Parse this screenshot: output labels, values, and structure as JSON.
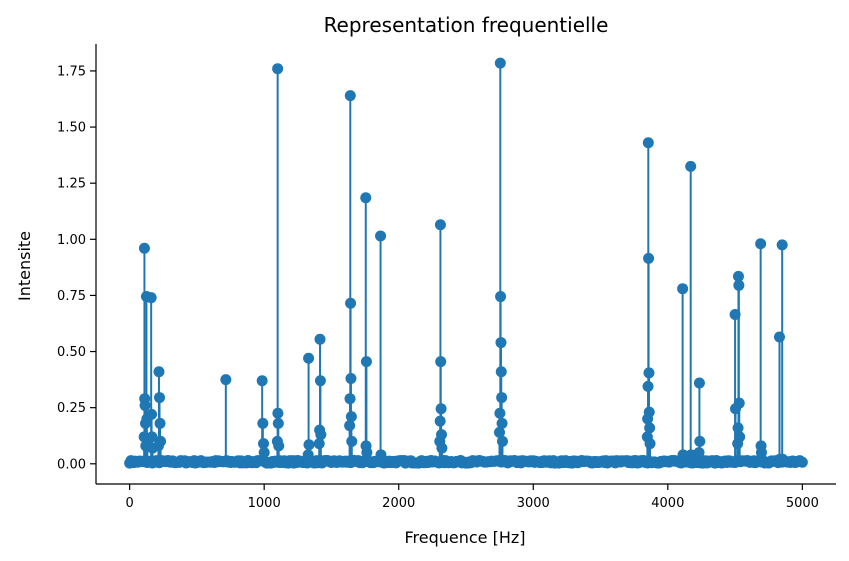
{
  "chart_data": {
    "type": "stem",
    "title": "Representation frequentielle",
    "xlabel": "Frequence [Hz]",
    "ylabel": "Intensite",
    "xlim": [
      -250,
      5250
    ],
    "ylim": [
      -0.09,
      1.87
    ],
    "xticks": [
      0,
      1000,
      2000,
      3000,
      4000,
      5000
    ],
    "xtick_labels": [
      "0",
      "1000",
      "2000",
      "3000",
      "4000",
      "5000"
    ],
    "yticks": [
      0.0,
      0.25,
      0.5,
      0.75,
      1.0,
      1.25,
      1.5,
      1.75
    ],
    "ytick_labels": [
      "0.00",
      "0.25",
      "0.50",
      "0.75",
      "1.00",
      "1.25",
      "1.50",
      "1.75"
    ],
    "grid": false,
    "stem_color": "#1f77b4",
    "baseline_color": "#d62728",
    "baseline_value": 0,
    "x_range": [
      0,
      5000
    ],
    "points": [
      [
        110,
        0.96
      ],
      [
        112,
        0.29
      ],
      [
        115,
        0.26
      ],
      [
        118,
        0.18
      ],
      [
        108,
        0.12
      ],
      [
        120,
        0.08
      ],
      [
        125,
        0.745
      ],
      [
        128,
        0.2
      ],
      [
        132,
        0.11
      ],
      [
        160,
        0.74
      ],
      [
        163,
        0.22
      ],
      [
        166,
        0.12
      ],
      [
        170,
        0.07
      ],
      [
        218,
        0.41
      ],
      [
        222,
        0.295
      ],
      [
        226,
        0.18
      ],
      [
        230,
        0.1
      ],
      [
        214,
        0.08
      ],
      [
        715,
        0.375
      ],
      [
        985,
        0.37
      ],
      [
        990,
        0.18
      ],
      [
        995,
        0.09
      ],
      [
        1000,
        0.05
      ],
      [
        1100,
        1.76
      ],
      [
        1102,
        0.225
      ],
      [
        1105,
        0.18
      ],
      [
        1098,
        0.1
      ],
      [
        1108,
        0.08
      ],
      [
        1330,
        0.47
      ],
      [
        1333,
        0.085
      ],
      [
        1327,
        0.04
      ],
      [
        1415,
        0.555
      ],
      [
        1418,
        0.37
      ],
      [
        1412,
        0.15
      ],
      [
        1421,
        0.13
      ],
      [
        1409,
        0.09
      ],
      [
        1640,
        1.64
      ],
      [
        1642,
        0.715
      ],
      [
        1645,
        0.38
      ],
      [
        1638,
        0.29
      ],
      [
        1648,
        0.21
      ],
      [
        1635,
        0.17
      ],
      [
        1651,
        0.1
      ],
      [
        1755,
        1.185
      ],
      [
        1760,
        0.455
      ],
      [
        1757,
        0.08
      ],
      [
        1763,
        0.05
      ],
      [
        1865,
        1.015
      ],
      [
        1868,
        0.04
      ],
      [
        2310,
        1.065
      ],
      [
        2312,
        0.455
      ],
      [
        2315,
        0.245
      ],
      [
        2308,
        0.19
      ],
      [
        2318,
        0.13
      ],
      [
        2305,
        0.1
      ],
      [
        2321,
        0.07
      ],
      [
        2755,
        1.785
      ],
      [
        2757,
        0.745
      ],
      [
        2760,
        0.54
      ],
      [
        2762,
        0.41
      ],
      [
        2765,
        0.295
      ],
      [
        2752,
        0.225
      ],
      [
        2768,
        0.18
      ],
      [
        2749,
        0.14
      ],
      [
        2771,
        0.1
      ],
      [
        3855,
        1.43
      ],
      [
        3857,
        0.915
      ],
      [
        3860,
        0.405
      ],
      [
        3853,
        0.345
      ],
      [
        3862,
        0.23
      ],
      [
        3850,
        0.2
      ],
      [
        3865,
        0.16
      ],
      [
        3848,
        0.12
      ],
      [
        3868,
        0.09
      ],
      [
        4110,
        0.78
      ],
      [
        4113,
        0.04
      ],
      [
        4170,
        1.325
      ],
      [
        4173,
        0.04
      ],
      [
        4235,
        0.36
      ],
      [
        4238,
        0.1
      ],
      [
        4232,
        0.05
      ],
      [
        4500,
        0.665
      ],
      [
        4503,
        0.245
      ],
      [
        4525,
        0.835
      ],
      [
        4528,
        0.795
      ],
      [
        4531,
        0.27
      ],
      [
        4522,
        0.16
      ],
      [
        4534,
        0.12
      ],
      [
        4519,
        0.09
      ],
      [
        4690,
        0.98
      ],
      [
        4693,
        0.08
      ],
      [
        4696,
        0.05
      ],
      [
        4830,
        0.565
      ],
      [
        4833,
        0.02
      ],
      [
        4850,
        0.975
      ],
      [
        4853,
        0.02
      ]
    ],
    "noise_points": 500
  }
}
